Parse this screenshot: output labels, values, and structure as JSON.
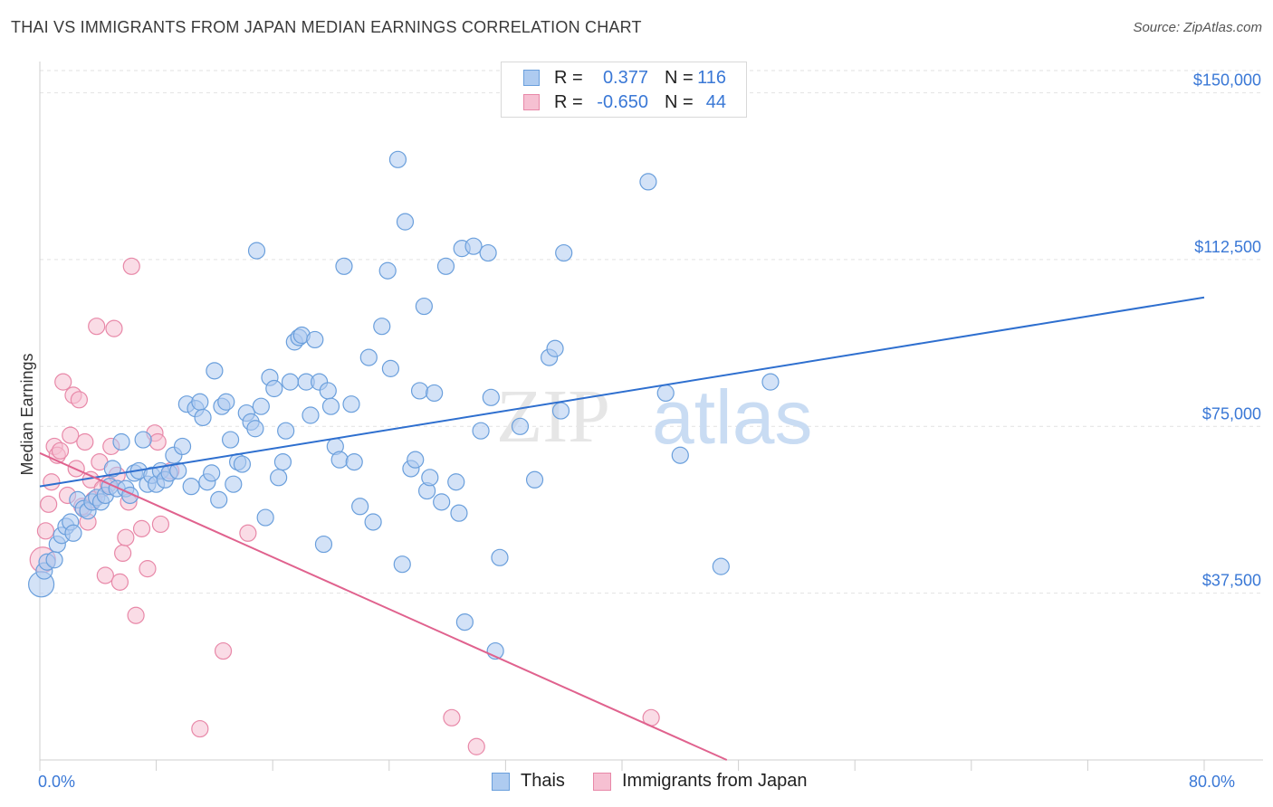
{
  "title": "THAI VS IMMIGRANTS FROM JAPAN MEDIAN EARNINGS CORRELATION CHART",
  "source": "Source: ZipAtlas.com",
  "watermark": {
    "zip": "ZIP",
    "atlas": "atlas"
  },
  "colors": {
    "blue_fill": "#aecbf0",
    "blue_stroke": "#6a9fdc",
    "blue_line": "#2e6fcf",
    "pink_fill": "#f6c0d2",
    "pink_stroke": "#e888a8",
    "pink_line": "#e0628e",
    "tick_text": "#3a78d6",
    "grid": "#e2e2e2"
  },
  "legend": [
    {
      "r_label": "R =",
      "r_value": "0.377",
      "n_label": "N =",
      "n_value": "116",
      "series": "blue"
    },
    {
      "r_label": "R =",
      "r_value": "-0.650",
      "n_label": "N =",
      "n_value": "44",
      "series": "pink"
    }
  ],
  "bottom_legend": [
    {
      "label": "Thais",
      "series": "blue"
    },
    {
      "label": "Immigrants from Japan",
      "series": "pink"
    }
  ],
  "chart_data": {
    "type": "scatter",
    "title": "THAI VS IMMIGRANTS FROM JAPAN MEDIAN EARNINGS CORRELATION CHART",
    "xlabel": "",
    "ylabel": "Median Earnings",
    "xlim": [
      0,
      80
    ],
    "ylim": [
      0,
      155000
    ],
    "x_tick_labels": [
      {
        "value": 0,
        "label": "0.0%"
      },
      {
        "value": 80,
        "label": "80.0%"
      }
    ],
    "y_ticks": [
      {
        "value": 37500,
        "label": "$37,500"
      },
      {
        "value": 75000,
        "label": "$75,000"
      },
      {
        "value": 112500,
        "label": "$112,500"
      },
      {
        "value": 150000,
        "label": "$150,000"
      }
    ],
    "series": [
      {
        "name": "Thais",
        "color": "blue",
        "R": 0.377,
        "N": 116,
        "trend": {
          "x0": 0,
          "y0": 61500,
          "x1": 80,
          "y1": 104000
        },
        "points": [
          [
            0.1,
            39500
          ],
          [
            0.3,
            42500
          ],
          [
            0.5,
            44500
          ],
          [
            1.0,
            45000
          ],
          [
            1.2,
            48500
          ],
          [
            1.5,
            50500
          ],
          [
            1.8,
            52500
          ],
          [
            2.1,
            53500
          ],
          [
            2.3,
            51000
          ],
          [
            2.6,
            58500
          ],
          [
            3.0,
            56500
          ],
          [
            3.3,
            56000
          ],
          [
            3.6,
            58000
          ],
          [
            3.9,
            59000
          ],
          [
            4.2,
            58000
          ],
          [
            4.5,
            59500
          ],
          [
            4.8,
            61500
          ],
          [
            5.0,
            65500
          ],
          [
            5.3,
            61000
          ],
          [
            5.6,
            71500
          ],
          [
            5.9,
            61000
          ],
          [
            6.2,
            59500
          ],
          [
            6.5,
            64500
          ],
          [
            6.8,
            65000
          ],
          [
            7.1,
            72000
          ],
          [
            7.4,
            62000
          ],
          [
            7.7,
            64000
          ],
          [
            8.0,
            62000
          ],
          [
            8.3,
            65000
          ],
          [
            8.6,
            63000
          ],
          [
            8.9,
            64500
          ],
          [
            9.2,
            68500
          ],
          [
            9.5,
            65000
          ],
          [
            9.8,
            70500
          ],
          [
            10.1,
            80000
          ],
          [
            10.4,
            61500
          ],
          [
            10.7,
            79000
          ],
          [
            11.0,
            80500
          ],
          [
            11.2,
            77000
          ],
          [
            11.5,
            62500
          ],
          [
            11.8,
            64500
          ],
          [
            12.0,
            87500
          ],
          [
            12.3,
            58500
          ],
          [
            12.5,
            79500
          ],
          [
            12.8,
            80500
          ],
          [
            13.1,
            72000
          ],
          [
            13.3,
            62000
          ],
          [
            13.6,
            67000
          ],
          [
            13.9,
            66500
          ],
          [
            14.2,
            78000
          ],
          [
            14.5,
            76000
          ],
          [
            14.8,
            74500
          ],
          [
            14.9,
            114500
          ],
          [
            15.2,
            79500
          ],
          [
            15.5,
            54500
          ],
          [
            15.8,
            86000
          ],
          [
            16.1,
            83500
          ],
          [
            16.4,
            63500
          ],
          [
            16.7,
            67000
          ],
          [
            16.9,
            74000
          ],
          [
            17.2,
            85000
          ],
          [
            17.5,
            94000
          ],
          [
            17.8,
            95000
          ],
          [
            18.0,
            95500
          ],
          [
            18.3,
            85000
          ],
          [
            18.6,
            77500
          ],
          [
            18.9,
            94500
          ],
          [
            19.2,
            85000
          ],
          [
            19.5,
            48500
          ],
          [
            19.8,
            83000
          ],
          [
            20.0,
            79500
          ],
          [
            20.3,
            70500
          ],
          [
            20.6,
            67500
          ],
          [
            20.9,
            111000
          ],
          [
            21.4,
            80000
          ],
          [
            21.6,
            67000
          ],
          [
            22.0,
            57000
          ],
          [
            22.6,
            90500
          ],
          [
            22.9,
            53500
          ],
          [
            23.5,
            97500
          ],
          [
            23.9,
            110000
          ],
          [
            24.1,
            88000
          ],
          [
            24.6,
            135000
          ],
          [
            24.9,
            44000
          ],
          [
            25.1,
            121000
          ],
          [
            25.5,
            65500
          ],
          [
            25.8,
            67500
          ],
          [
            26.1,
            83000
          ],
          [
            26.4,
            102000
          ],
          [
            26.6,
            60500
          ],
          [
            26.8,
            63500
          ],
          [
            27.1,
            82500
          ],
          [
            27.6,
            58000
          ],
          [
            27.9,
            111000
          ],
          [
            28.6,
            62500
          ],
          [
            28.8,
            55500
          ],
          [
            29.0,
            115000
          ],
          [
            29.2,
            31000
          ],
          [
            29.8,
            115500
          ],
          [
            30.3,
            74000
          ],
          [
            30.8,
            114000
          ],
          [
            31.0,
            81500
          ],
          [
            31.3,
            24500
          ],
          [
            31.6,
            45500
          ],
          [
            33.0,
            75000
          ],
          [
            34.0,
            63000
          ],
          [
            35.0,
            90500
          ],
          [
            35.4,
            92500
          ],
          [
            35.8,
            78500
          ],
          [
            36.0,
            114000
          ],
          [
            41.8,
            130000
          ],
          [
            43.0,
            82500
          ],
          [
            44.0,
            68500
          ],
          [
            46.8,
            43500
          ],
          [
            50.2,
            85000
          ]
        ]
      },
      {
        "name": "Immigrants from Japan",
        "color": "pink",
        "R": -0.65,
        "N": 44,
        "trend": {
          "x0": 0,
          "y0": 69000,
          "x1": 47.2,
          "y1": 0
        },
        "points": [
          [
            0.2,
            45000
          ],
          [
            0.4,
            51500
          ],
          [
            0.6,
            57500
          ],
          [
            0.8,
            62500
          ],
          [
            1.0,
            70500
          ],
          [
            1.2,
            68500
          ],
          [
            1.4,
            69500
          ],
          [
            1.6,
            85000
          ],
          [
            1.9,
            59500
          ],
          [
            2.1,
            73000
          ],
          [
            2.3,
            82000
          ],
          [
            2.5,
            65500
          ],
          [
            2.7,
            81000
          ],
          [
            2.9,
            57000
          ],
          [
            3.1,
            71500
          ],
          [
            3.3,
            53500
          ],
          [
            3.5,
            63000
          ],
          [
            3.7,
            58500
          ],
          [
            3.9,
            97500
          ],
          [
            4.1,
            67000
          ],
          [
            4.3,
            61000
          ],
          [
            4.5,
            41500
          ],
          [
            4.7,
            62000
          ],
          [
            4.9,
            70500
          ],
          [
            5.1,
            97000
          ],
          [
            5.3,
            64000
          ],
          [
            5.5,
            40000
          ],
          [
            5.7,
            46500
          ],
          [
            5.9,
            50000
          ],
          [
            6.1,
            58000
          ],
          [
            6.3,
            111000
          ],
          [
            6.6,
            32500
          ],
          [
            7.0,
            52000
          ],
          [
            7.4,
            43000
          ],
          [
            7.9,
            73500
          ],
          [
            8.1,
            71500
          ],
          [
            8.3,
            53000
          ],
          [
            9.0,
            65000
          ],
          [
            11.0,
            7000
          ],
          [
            12.6,
            24500
          ],
          [
            14.3,
            51000
          ],
          [
            28.3,
            9500
          ],
          [
            30.0,
            3000
          ],
          [
            42.0,
            9500
          ]
        ]
      }
    ]
  }
}
